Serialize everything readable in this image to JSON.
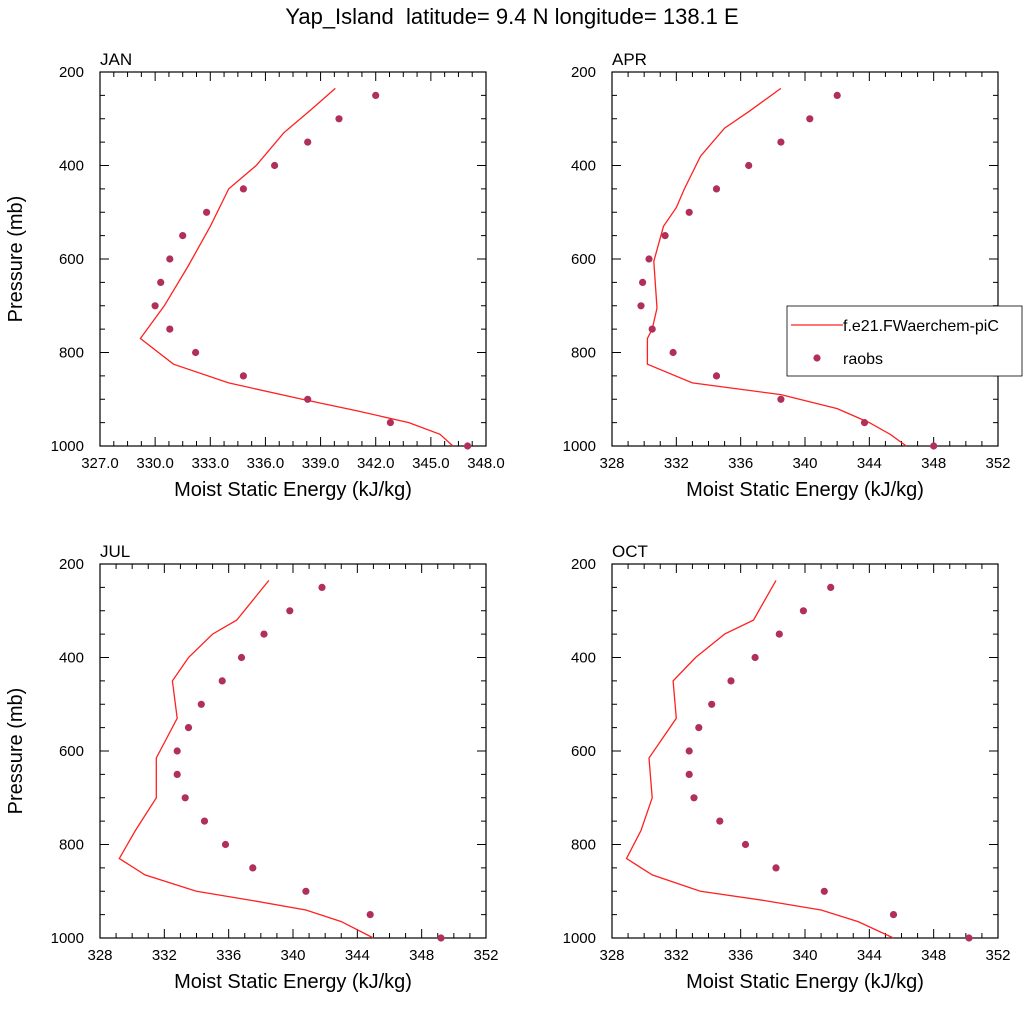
{
  "title": "Yap_Island  latitude= 9.4 N longitude= 138.1 E",
  "legend": {
    "model_label": "f.e21.FWaerchem-piC",
    "obs_label": "raobs"
  },
  "colors": {
    "model": "#ff2020",
    "obs": "#b0305a"
  },
  "chart_data": [
    {
      "type": "scatter",
      "title": "JAN",
      "xlabel": "Moist Static Energy (kJ/kg)",
      "ylabel": "Pressure (mb)",
      "xlim": [
        327,
        348
      ],
      "ylim": [
        200,
        1000
      ],
      "y_reversed": true,
      "xticks": [
        327,
        330,
        333,
        336,
        339,
        342,
        345,
        348
      ],
      "xtick_labels": [
        "327.0",
        "330.0",
        "333.0",
        "336.0",
        "339.0",
        "342.0",
        "345.0",
        "348.0"
      ],
      "yticks": [
        200,
        400,
        600,
        800,
        1000
      ],
      "ytick_labels": [
        "200",
        "400",
        "600",
        "800",
        "1000"
      ],
      "show_ylabel": true,
      "series": [
        {
          "name": "f.e21.FWaerchem-piC",
          "kind": "line",
          "x": [
            346.2,
            345.5,
            343.8,
            341.0,
            338.0,
            334.0,
            331.0,
            329.2,
            330.5,
            331.8,
            333.0,
            333.5,
            334.0,
            335.5,
            337.0,
            338.5,
            339.8
          ],
          "y": [
            1000,
            975,
            950,
            925,
            900,
            865,
            825,
            770,
            700,
            615,
            530,
            490,
            450,
            400,
            330,
            280,
            235
          ]
        },
        {
          "name": "raobs",
          "kind": "points",
          "x": [
            347.0,
            342.8,
            338.3,
            334.8,
            332.2,
            330.8,
            330.0,
            330.3,
            330.8,
            331.5,
            332.8,
            334.8,
            336.5,
            338.3,
            340.0,
            342.0
          ],
          "y": [
            1000,
            950,
            900,
            850,
            800,
            750,
            700,
            650,
            600,
            550,
            500,
            450,
            400,
            350,
            300,
            250
          ]
        }
      ]
    },
    {
      "type": "scatter",
      "title": "APR",
      "xlabel": "Moist Static Energy (kJ/kg)",
      "ylabel": "",
      "xlim": [
        328,
        352
      ],
      "ylim": [
        200,
        1000
      ],
      "y_reversed": true,
      "xticks": [
        328,
        332,
        336,
        340,
        344,
        348,
        352
      ],
      "xtick_labels": [
        "328",
        "332",
        "336",
        "340",
        "344",
        "348",
        "352"
      ],
      "yticks": [
        200,
        400,
        600,
        800,
        1000
      ],
      "ytick_labels": [
        "200",
        "400",
        "600",
        "800",
        "1000"
      ],
      "show_ylabel": false,
      "show_legend": true,
      "series": [
        {
          "name": "f.e21.FWaerchem-piC",
          "kind": "line",
          "x": [
            346.3,
            345.3,
            344.0,
            342.0,
            338.5,
            333.0,
            330.2,
            330.2,
            330.5,
            330.8,
            330.6,
            331.2,
            332.0,
            332.5,
            333.5,
            335.0,
            336.5,
            338.5
          ],
          "y": [
            1000,
            975,
            950,
            920,
            890,
            865,
            825,
            770,
            750,
            705,
            605,
            530,
            490,
            450,
            380,
            320,
            285,
            235
          ]
        },
        {
          "name": "raobs",
          "kind": "points",
          "x": [
            348.0,
            343.7,
            338.5,
            334.5,
            331.8,
            330.5,
            329.8,
            329.9,
            330.3,
            331.3,
            332.8,
            334.5,
            336.5,
            338.5,
            340.3,
            342.0
          ],
          "y": [
            1000,
            950,
            900,
            850,
            800,
            750,
            700,
            650,
            600,
            550,
            500,
            450,
            400,
            350,
            300,
            250
          ]
        }
      ]
    },
    {
      "type": "scatter",
      "title": "JUL",
      "xlabel": "Moist Static Energy (kJ/kg)",
      "ylabel": "Pressure (mb)",
      "xlim": [
        328,
        352
      ],
      "ylim": [
        200,
        1000
      ],
      "y_reversed": true,
      "xticks": [
        328,
        332,
        336,
        340,
        344,
        348,
        352
      ],
      "xtick_labels": [
        "328",
        "332",
        "336",
        "340",
        "344",
        "348",
        "352"
      ],
      "yticks": [
        200,
        400,
        600,
        800,
        1000
      ],
      "ytick_labels": [
        "200",
        "400",
        "600",
        "800",
        "1000"
      ],
      "show_ylabel": true,
      "series": [
        {
          "name": "f.e21.FWaerchem-piC",
          "kind": "line",
          "x": [
            345.0,
            343.0,
            340.8,
            337.5,
            334.0,
            330.8,
            329.2,
            330.2,
            331.5,
            331.5,
            332.8,
            332.5,
            333.5,
            335.0,
            336.5,
            338.5
          ],
          "y": [
            1000,
            965,
            940,
            920,
            900,
            865,
            830,
            770,
            700,
            615,
            530,
            450,
            400,
            350,
            320,
            235
          ]
        },
        {
          "name": "raobs",
          "kind": "points",
          "x": [
            349.2,
            344.8,
            340.8,
            337.5,
            335.8,
            334.5,
            333.3,
            332.8,
            332.8,
            333.5,
            334.3,
            335.6,
            336.8,
            338.2,
            339.8,
            341.8
          ],
          "y": [
            1000,
            950,
            900,
            850,
            800,
            750,
            700,
            650,
            600,
            550,
            500,
            450,
            400,
            350,
            300,
            250
          ]
        }
      ]
    },
    {
      "type": "scatter",
      "title": "OCT",
      "xlabel": "Moist Static Energy (kJ/kg)",
      "ylabel": "",
      "xlim": [
        328,
        352
      ],
      "ylim": [
        200,
        1000
      ],
      "y_reversed": true,
      "xticks": [
        328,
        332,
        336,
        340,
        344,
        348,
        352
      ],
      "xtick_labels": [
        "328",
        "332",
        "336",
        "340",
        "344",
        "348",
        "352"
      ],
      "yticks": [
        200,
        400,
        600,
        800,
        1000
      ],
      "ytick_labels": [
        "200",
        "400",
        "600",
        "800",
        "1000"
      ],
      "show_ylabel": false,
      "series": [
        {
          "name": "f.e21.FWaerchem-piC",
          "kind": "line",
          "x": [
            345.5,
            343.3,
            341.0,
            337.5,
            333.5,
            330.5,
            328.9,
            329.8,
            330.5,
            330.3,
            332.0,
            331.8,
            333.2,
            335.0,
            336.8,
            338.2
          ],
          "y": [
            1000,
            965,
            940,
            920,
            900,
            865,
            830,
            770,
            700,
            615,
            530,
            450,
            400,
            350,
            320,
            235
          ]
        },
        {
          "name": "raobs",
          "kind": "points",
          "x": [
            350.2,
            345.5,
            341.2,
            338.2,
            336.3,
            334.7,
            333.1,
            332.8,
            332.8,
            333.4,
            334.2,
            335.4,
            336.9,
            338.4,
            339.9,
            341.6
          ],
          "y": [
            1000,
            950,
            900,
            850,
            800,
            750,
            700,
            650,
            600,
            550,
            500,
            450,
            400,
            350,
            300,
            250
          ]
        }
      ]
    }
  ]
}
